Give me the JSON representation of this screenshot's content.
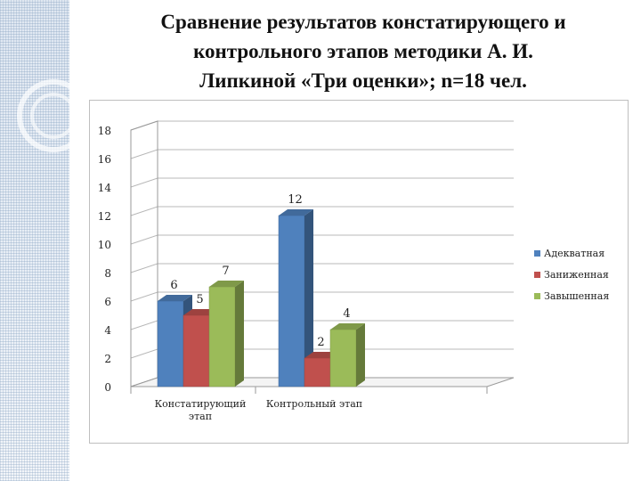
{
  "title": {
    "line1": "Сравнение результатов констатирующего и",
    "line2": "контрольного этапов методики А. И.",
    "line3": "Липкиной «Три оценки»; n=18 чел."
  },
  "chart_data": {
    "type": "bar",
    "categories": [
      "Констатирующий этап",
      "Контрольный этап"
    ],
    "series": [
      {
        "name": "Адекватная",
        "values": [
          6,
          12
        ],
        "color": "#4f81bd"
      },
      {
        "name": "Заниженная",
        "values": [
          5,
          2
        ],
        "color": "#c0504d"
      },
      {
        "name": "Завышенная",
        "values": [
          7,
          4
        ],
        "color": "#9bbb59"
      }
    ],
    "ylim": [
      0,
      18
    ],
    "yticks": [
      0,
      2,
      4,
      6,
      8,
      10,
      12,
      14,
      16,
      18
    ],
    "grid": true,
    "style": "3d-clustered",
    "legend_position": "right"
  }
}
